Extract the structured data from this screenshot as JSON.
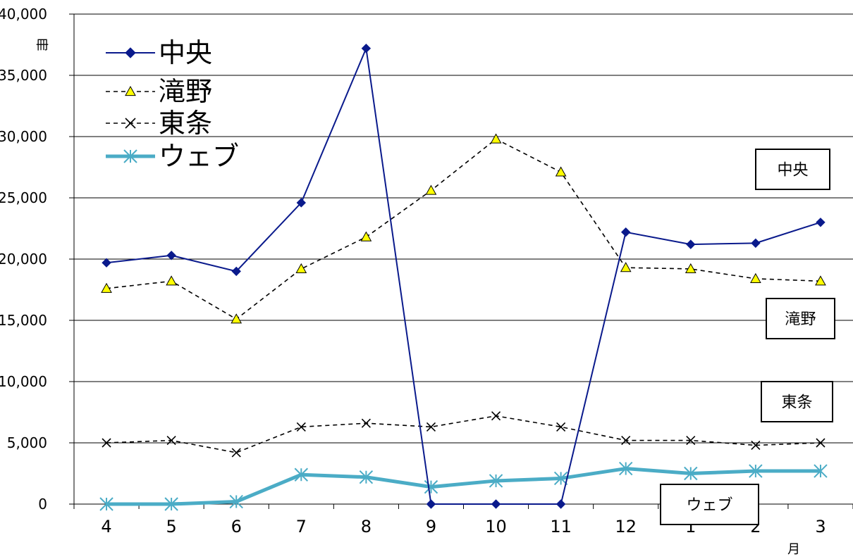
{
  "chart_data": {
    "type": "line",
    "y_unit_label": "冊",
    "x_unit_label": "月",
    "categories": [
      "4",
      "5",
      "6",
      "7",
      "8",
      "9",
      "10",
      "11",
      "12",
      "1",
      "2",
      "3"
    ],
    "ylim": [
      0,
      40000
    ],
    "yticks": [
      0,
      5000,
      10000,
      15000,
      20000,
      25000,
      30000,
      35000,
      40000
    ],
    "ytick_labels": [
      "0",
      "5,000",
      "10,000",
      "15,000",
      "20,000",
      "25,000",
      "30,000",
      "35,000",
      "40,000"
    ],
    "grid": true,
    "legend_position": "top-left",
    "series": [
      {
        "name": "中央",
        "color": "#0a1a8c",
        "marker": "diamond",
        "line_style": "solid",
        "values": [
          19700,
          20300,
          19000,
          24600,
          37200,
          0,
          0,
          0,
          22200,
          21200,
          21300,
          23000
        ]
      },
      {
        "name": "滝野",
        "color": "#000000",
        "marker_fill": "#ffff00",
        "marker": "triangle",
        "line_style": "dashed",
        "values": [
          17600,
          18200,
          15100,
          19200,
          21800,
          25600,
          29800,
          27100,
          19300,
          19200,
          18400,
          18200
        ]
      },
      {
        "name": "東条",
        "color": "#000000",
        "marker": "x",
        "line_style": "dashed",
        "values": [
          5000,
          5200,
          4200,
          6300,
          6600,
          6300,
          7200,
          6300,
          5200,
          5200,
          4800,
          5000
        ]
      },
      {
        "name": "ウェブ",
        "color": "#4bacc6",
        "marker": "asterisk",
        "line_style": "solid-thick",
        "values": [
          0,
          0,
          200,
          2400,
          2200,
          1400,
          1900,
          2100,
          2900,
          2500,
          2700,
          2700
        ]
      }
    ],
    "annotations": [
      "中央",
      "滝野",
      "東条",
      "ウェブ"
    ]
  }
}
